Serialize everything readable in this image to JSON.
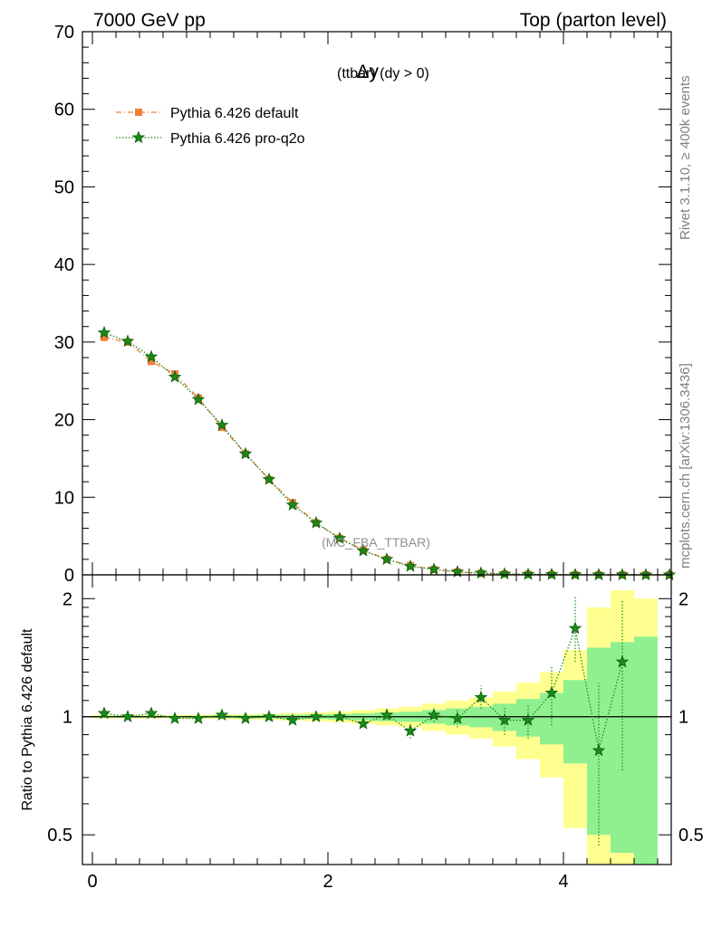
{
  "header": {
    "left": "7000 GeV pp",
    "right": "Top (parton level)"
  },
  "title_main": "Δy",
  "title_sub": "(ttbar) (dy > 0)",
  "watermark": "(MC_FBA_TTBAR)",
  "side_text_top": "Rivet 3.1.10, ≥ 400k events",
  "side_text_bottom": "mcplots.cern.ch [arXiv:1306.3436]",
  "ratio_ylabel": "Ratio to Pythia 6.426 default",
  "colors": {
    "default": "#f07f38",
    "proq2o": "#1a8a1a",
    "band_inner": "#90f090",
    "band_outer": "#ffff90"
  },
  "chart_data": [
    {
      "type": "line",
      "panel": "main",
      "xlim": [
        0,
        5.0
      ],
      "ylim": [
        0,
        70
      ],
      "yticks": [
        0,
        10,
        20,
        30,
        40,
        50,
        60,
        70
      ],
      "xticks": [
        0,
        2,
        4
      ],
      "legend": {
        "placement": "top-left",
        "entries": [
          "Pythia 6.426 default",
          "Pythia 6.426 pro-q2o"
        ]
      },
      "x": [
        0.1,
        0.3,
        0.5,
        0.7,
        0.9,
        1.1,
        1.3,
        1.5,
        1.7,
        1.9,
        2.1,
        2.3,
        2.5,
        2.7,
        2.9,
        3.1,
        3.3,
        3.5,
        3.7,
        3.9,
        4.1,
        4.3,
        4.5,
        4.7,
        4.9
      ],
      "series": [
        {
          "name": "Pythia 6.426 default",
          "values": [
            30.6,
            30.0,
            27.5,
            25.9,
            22.8,
            19.0,
            15.6,
            12.3,
            9.3,
            6.7,
            4.7,
            3.2,
            2.0,
            1.2,
            0.7,
            0.38,
            0.2,
            0.12,
            0.07,
            0.04,
            0.02,
            0.01,
            0.01,
            0.01,
            0.0
          ]
        },
        {
          "name": "Pythia 6.426 pro-q2o",
          "values": [
            31.2,
            30.1,
            28.1,
            25.5,
            22.6,
            19.3,
            15.6,
            12.3,
            9.0,
            6.7,
            4.7,
            3.1,
            2.0,
            1.1,
            0.7,
            0.38,
            0.23,
            0.12,
            0.07,
            0.05,
            0.03,
            0.01,
            0.01,
            0.0,
            0.0
          ]
        }
      ]
    },
    {
      "type": "line",
      "panel": "ratio",
      "xlim": [
        0,
        5.0
      ],
      "ylim": [
        0.42,
        2.3
      ],
      "yticks": [
        0.5,
        1,
        2
      ],
      "xticks": [
        0,
        2,
        4
      ],
      "ylabel": "Ratio to Pythia 6.426 default",
      "x": [
        0.1,
        0.3,
        0.5,
        0.7,
        0.9,
        1.1,
        1.3,
        1.5,
        1.7,
        1.9,
        2.1,
        2.3,
        2.5,
        2.7,
        2.9,
        3.1,
        3.3,
        3.5,
        3.7,
        3.9,
        4.1,
        4.3,
        4.5
      ],
      "series": [
        {
          "name": "Pythia 6.426 pro-q2o",
          "values": [
            1.02,
            1.0,
            1.02,
            0.99,
            0.99,
            1.01,
            0.99,
            1.0,
            0.98,
            1.0,
            1.0,
            0.96,
            1.01,
            0.92,
            1.01,
            0.99,
            1.12,
            0.98,
            0.98,
            1.15,
            1.68,
            0.82,
            1.38
          ],
          "err_low": [
            0.01,
            0.01,
            0.01,
            0.01,
            0.01,
            0.01,
            0.01,
            0.01,
            0.01,
            0.01,
            0.02,
            0.02,
            0.03,
            0.04,
            0.04,
            0.05,
            0.07,
            0.08,
            0.1,
            0.2,
            0.3,
            0.35,
            0.65
          ],
          "err_high": [
            0.01,
            0.01,
            0.01,
            0.01,
            0.01,
            0.01,
            0.01,
            0.01,
            0.01,
            0.01,
            0.02,
            0.02,
            0.03,
            0.04,
            0.04,
            0.05,
            0.08,
            0.08,
            0.1,
            0.2,
            0.35,
            0.4,
            0.6
          ]
        }
      ],
      "band_edges": [
        0,
        0.2,
        0.4,
        0.6,
        0.8,
        1.0,
        1.2,
        1.4,
        1.6,
        1.8,
        2.0,
        2.2,
        2.4,
        2.6,
        2.8,
        3.0,
        3.2,
        3.4,
        3.6,
        3.8,
        4.0,
        4.2,
        4.4,
        4.6,
        4.8
      ],
      "band_inner": [
        0.005,
        0.005,
        0.005,
        0.005,
        0.006,
        0.007,
        0.008,
        0.009,
        0.011,
        0.013,
        0.016,
        0.02,
        0.025,
        0.03,
        0.04,
        0.05,
        0.06,
        0.08,
        0.11,
        0.15,
        0.24,
        0.5,
        0.55,
        0.6
      ],
      "band_outer": [
        0.01,
        0.01,
        0.01,
        0.01,
        0.012,
        0.014,
        0.016,
        0.018,
        0.022,
        0.026,
        0.032,
        0.04,
        0.05,
        0.06,
        0.08,
        0.1,
        0.12,
        0.16,
        0.22,
        0.3,
        0.48,
        0.9,
        1.1,
        1.0
      ]
    }
  ]
}
